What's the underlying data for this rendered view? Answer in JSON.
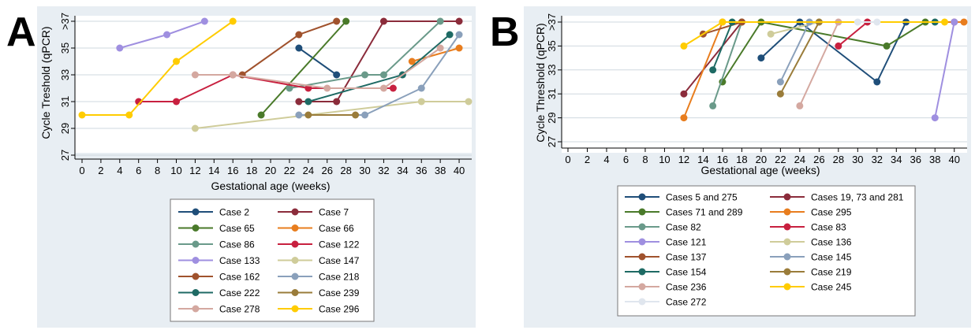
{
  "panels": [
    {
      "label": "A",
      "ylabel": "Cycle Treshold (qPCR)",
      "xlabel": "Gestational age (weeks)"
    },
    {
      "label": "B",
      "ylabel": "Cycle Threshold (qPCR)",
      "xlabel": "Gestational age (weeks)"
    }
  ],
  "chart_data": [
    {
      "type": "line",
      "title": "",
      "xlabel": "Gestational age (weeks)",
      "ylabel": "Cycle Treshold (qPCR)",
      "xlim": [
        0,
        41
      ],
      "ylim": [
        27,
        37
      ],
      "xticks": [
        0,
        2,
        4,
        6,
        8,
        10,
        12,
        14,
        16,
        18,
        20,
        22,
        24,
        26,
        28,
        30,
        32,
        34,
        36,
        38,
        40
      ],
      "xtick_labels": [
        "0",
        "2",
        "4",
        "6",
        "8",
        "10",
        "12",
        "14",
        "16",
        "18",
        "20",
        "22",
        "24",
        "26",
        "28",
        "30",
        "32",
        "34",
        "36",
        "38",
        "40"
      ],
      "yticks": [
        27,
        29,
        31,
        33,
        35,
        37
      ],
      "ytick_labels": [
        "27",
        "29",
        "31",
        "33",
        "35",
        ">37"
      ],
      "grid": true,
      "legend_position": "bottom",
      "series": [
        {
          "name": "Case 2",
          "color": "#1f4e79",
          "x": [
            23,
            27
          ],
          "y": [
            35,
            33
          ]
        },
        {
          "name": "Case 7",
          "color": "#8b2c3b",
          "x": [
            23,
            27,
            32,
            40
          ],
          "y": [
            31,
            31,
            37,
            37
          ]
        },
        {
          "name": "Case 65",
          "color": "#4a7a2a",
          "x": [
            19,
            28
          ],
          "y": [
            30,
            37
          ]
        },
        {
          "name": "Case 66",
          "color": "#e87d1e",
          "x": [
            35,
            40
          ],
          "y": [
            34,
            35
          ]
        },
        {
          "name": "Case 86",
          "color": "#6a9a8a",
          "x": [
            22,
            30,
            32,
            38
          ],
          "y": [
            32,
            33,
            33,
            37
          ]
        },
        {
          "name": "Case 122",
          "color": "#c8203f",
          "x": [
            6,
            10,
            16,
            24,
            33
          ],
          "y": [
            31,
            31,
            33,
            32,
            32
          ]
        },
        {
          "name": "Case 133",
          "color": "#9f8fe0",
          "x": [
            4,
            9,
            13
          ],
          "y": [
            35,
            36,
            37
          ]
        },
        {
          "name": "Case 147",
          "color": "#cfcc9a",
          "x": [
            12,
            36,
            41
          ],
          "y": [
            29,
            31,
            31
          ]
        },
        {
          "name": "Case 162",
          "color": "#a0522d",
          "x": [
            17,
            23,
            27
          ],
          "y": [
            33,
            36,
            37
          ]
        },
        {
          "name": "Case 218",
          "color": "#8aa0bb",
          "x": [
            23,
            30,
            36,
            40
          ],
          "y": [
            30,
            30,
            32,
            36
          ]
        },
        {
          "name": "Case 222",
          "color": "#1e6a64",
          "x": [
            24,
            34,
            39
          ],
          "y": [
            31,
            33,
            36
          ]
        },
        {
          "name": "Case 239",
          "color": "#9a7c3a",
          "x": [
            24,
            29
          ],
          "y": [
            30,
            30
          ]
        },
        {
          "name": "Case 278",
          "color": "#d4a8a0",
          "x": [
            12,
            16,
            26,
            32,
            38
          ],
          "y": [
            33,
            33,
            32,
            32,
            35
          ]
        },
        {
          "name": "Case 296",
          "color": "#ffcc00",
          "x": [
            0,
            5,
            10,
            16
          ],
          "y": [
            30,
            30,
            34,
            37
          ]
        }
      ]
    },
    {
      "type": "line",
      "title": "",
      "xlabel": "Gestational age (weeks)",
      "ylabel": "Cycle Threshold (qPCR)",
      "xlim": [
        0,
        41
      ],
      "ylim": [
        27,
        37
      ],
      "xticks": [
        0,
        2,
        4,
        6,
        8,
        10,
        12,
        14,
        16,
        18,
        20,
        22,
        24,
        26,
        28,
        30,
        32,
        34,
        36,
        38,
        40
      ],
      "xtick_labels": [
        "0",
        "2",
        "4",
        "6",
        "8",
        "10",
        "12",
        "14",
        "16",
        "18",
        "20",
        "22",
        "24",
        "26",
        "28",
        "30",
        "32",
        "34",
        "36",
        "38",
        "40"
      ],
      "yticks": [
        27,
        29,
        31,
        33,
        35,
        37
      ],
      "ytick_labels": [
        "27",
        "29",
        "31",
        "33",
        "35",
        ">37"
      ],
      "grid": true,
      "legend_position": "bottom",
      "series": [
        {
          "name": "Cases 5 and 275",
          "color": "#1f4e79",
          "x": [
            20,
            24,
            32,
            35
          ],
          "y": [
            34,
            37,
            32,
            37
          ]
        },
        {
          "name": "Cases 19, 73 and 281",
          "color": "#8b2c3b",
          "x": [
            12,
            18,
            40
          ],
          "y": [
            31,
            37,
            37
          ]
        },
        {
          "name": "Cases 71 and 289",
          "color": "#4a7a2a",
          "x": [
            16,
            20,
            33,
            37
          ],
          "y": [
            32,
            37,
            35,
            37
          ]
        },
        {
          "name": "Case 295",
          "color": "#e87d1e",
          "x": [
            12,
            16,
            41
          ],
          "y": [
            29,
            37,
            37
          ]
        },
        {
          "name": "Case 82",
          "color": "#6a9a8a",
          "x": [
            15,
            18
          ],
          "y": [
            30,
            37
          ]
        },
        {
          "name": "Case 83",
          "color": "#c8203f",
          "x": [
            28,
            31
          ],
          "y": [
            35,
            37
          ]
        },
        {
          "name": "Case 121",
          "color": "#9f8fe0",
          "x": [
            38,
            40
          ],
          "y": [
            29,
            37
          ]
        },
        {
          "name": "Case 136",
          "color": "#cfcc9a",
          "x": [
            21,
            26
          ],
          "y": [
            36,
            37
          ]
        },
        {
          "name": "Case 137",
          "color": "#a0522d",
          "x": [
            14,
            18
          ],
          "y": [
            36,
            37
          ]
        },
        {
          "name": "Case 145",
          "color": "#8aa0bb",
          "x": [
            22,
            25
          ],
          "y": [
            32,
            37
          ]
        },
        {
          "name": "Case 154",
          "color": "#1e6a64",
          "x": [
            15,
            17,
            38
          ],
          "y": [
            33,
            37,
            37
          ]
        },
        {
          "name": "Case 219",
          "color": "#9a7c3a",
          "x": [
            22,
            26
          ],
          "y": [
            31,
            37
          ]
        },
        {
          "name": "Case 236",
          "color": "#d4a8a0",
          "x": [
            24,
            28
          ],
          "y": [
            30,
            37
          ]
        },
        {
          "name": "Case 245",
          "color": "#ffcc00",
          "x": [
            12,
            16,
            39
          ],
          "y": [
            35,
            37,
            37
          ]
        },
        {
          "name": "Case 272",
          "color": "#e0e6ee",
          "x": [
            30,
            32
          ],
          "y": [
            37,
            37
          ]
        }
      ]
    }
  ]
}
